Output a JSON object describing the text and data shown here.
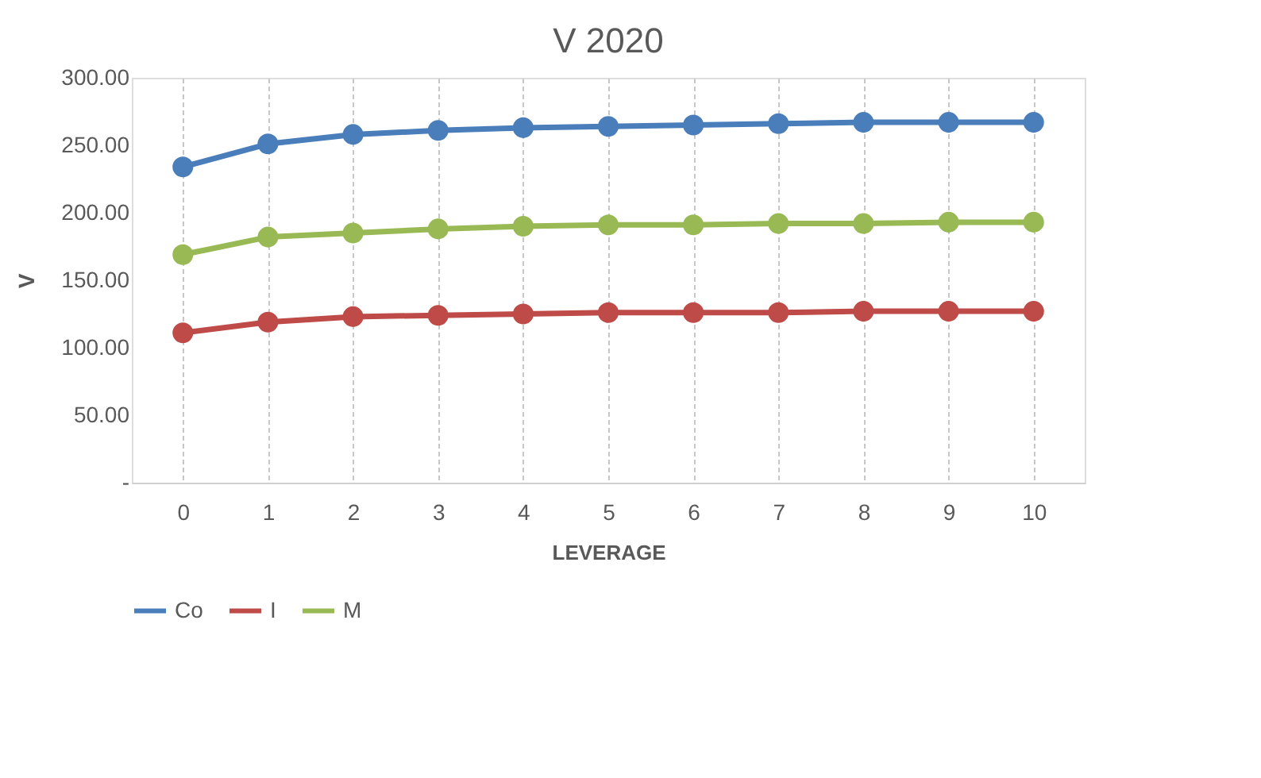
{
  "chart_data": {
    "type": "line",
    "title": "V 2020",
    "xlabel": "LEVERAGE",
    "ylabel": "V",
    "categories": [
      "0",
      "1",
      "2",
      "3",
      "4",
      "5",
      "6",
      "7",
      "8",
      "9",
      "10"
    ],
    "series": [
      {
        "name": "Co",
        "color": "#4a7ebb",
        "values": [
          234,
          251,
          258,
          261,
          263,
          264,
          265,
          266,
          267,
          267,
          267
        ]
      },
      {
        "name": "I",
        "color": "#be4b48",
        "values": [
          111,
          119,
          123,
          124,
          125,
          126,
          126,
          126,
          127,
          127,
          127
        ]
      },
      {
        "name": "M",
        "color": "#98b954",
        "values": [
          169,
          182,
          185,
          188,
          190,
          191,
          191,
          192,
          192,
          193,
          193
        ]
      }
    ],
    "ylim": [
      0,
      300
    ],
    "yticks": [
      {
        "value": 0,
        "label": "-"
      },
      {
        "value": 50,
        "label": "50.00"
      },
      {
        "value": 100,
        "label": "100.00"
      },
      {
        "value": 150,
        "label": "150.00"
      },
      {
        "value": 200,
        "label": "200.00"
      },
      {
        "value": 250,
        "label": "250.00"
      },
      {
        "value": 300,
        "label": "300.00"
      }
    ],
    "grid": "x",
    "legend": "bottom",
    "marker": "circle",
    "line_style": "solid"
  }
}
